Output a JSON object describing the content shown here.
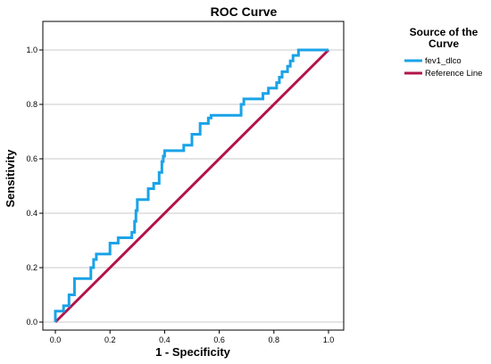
{
  "chart_data": {
    "type": "line",
    "title": "ROC Curve",
    "xlabel": "1 - Specificity",
    "ylabel": "Sensitivity",
    "xlim": [
      0,
      1
    ],
    "ylim": [
      0,
      1
    ],
    "x_ticks": [
      "0.0",
      "0.2",
      "0.4",
      "0.6",
      "0.8",
      "1.0"
    ],
    "y_ticks": [
      "0.0",
      "0.2",
      "0.4",
      "0.6",
      "0.8",
      "1.0"
    ],
    "grid": "horizontal",
    "legend": {
      "title_lines": [
        "Source of the",
        "Curve"
      ],
      "placement": "top-right"
    },
    "series": [
      {
        "name": "fev1_dlco",
        "color": "#1aa3e8",
        "points": [
          [
            0.0,
            0.0
          ],
          [
            0.0,
            0.04
          ],
          [
            0.03,
            0.04
          ],
          [
            0.03,
            0.06
          ],
          [
            0.05,
            0.06
          ],
          [
            0.05,
            0.1
          ],
          [
            0.07,
            0.1
          ],
          [
            0.07,
            0.16
          ],
          [
            0.13,
            0.16
          ],
          [
            0.13,
            0.2
          ],
          [
            0.14,
            0.2
          ],
          [
            0.14,
            0.23
          ],
          [
            0.15,
            0.23
          ],
          [
            0.15,
            0.25
          ],
          [
            0.2,
            0.25
          ],
          [
            0.2,
            0.29
          ],
          [
            0.23,
            0.29
          ],
          [
            0.23,
            0.31
          ],
          [
            0.28,
            0.31
          ],
          [
            0.28,
            0.33
          ],
          [
            0.29,
            0.33
          ],
          [
            0.29,
            0.37
          ],
          [
            0.295,
            0.37
          ],
          [
            0.295,
            0.41
          ],
          [
            0.3,
            0.41
          ],
          [
            0.3,
            0.45
          ],
          [
            0.34,
            0.45
          ],
          [
            0.34,
            0.49
          ],
          [
            0.36,
            0.49
          ],
          [
            0.36,
            0.51
          ],
          [
            0.38,
            0.51
          ],
          [
            0.38,
            0.55
          ],
          [
            0.39,
            0.55
          ],
          [
            0.39,
            0.59
          ],
          [
            0.395,
            0.59
          ],
          [
            0.395,
            0.61
          ],
          [
            0.4,
            0.61
          ],
          [
            0.4,
            0.63
          ],
          [
            0.47,
            0.63
          ],
          [
            0.47,
            0.65
          ],
          [
            0.5,
            0.65
          ],
          [
            0.5,
            0.69
          ],
          [
            0.53,
            0.69
          ],
          [
            0.53,
            0.73
          ],
          [
            0.56,
            0.73
          ],
          [
            0.56,
            0.75
          ],
          [
            0.57,
            0.75
          ],
          [
            0.57,
            0.76
          ],
          [
            0.68,
            0.76
          ],
          [
            0.68,
            0.8
          ],
          [
            0.69,
            0.8
          ],
          [
            0.69,
            0.82
          ],
          [
            0.76,
            0.82
          ],
          [
            0.76,
            0.84
          ],
          [
            0.78,
            0.84
          ],
          [
            0.78,
            0.86
          ],
          [
            0.81,
            0.86
          ],
          [
            0.81,
            0.88
          ],
          [
            0.82,
            0.88
          ],
          [
            0.82,
            0.9
          ],
          [
            0.83,
            0.9
          ],
          [
            0.83,
            0.92
          ],
          [
            0.85,
            0.92
          ],
          [
            0.85,
            0.94
          ],
          [
            0.86,
            0.94
          ],
          [
            0.86,
            0.96
          ],
          [
            0.87,
            0.96
          ],
          [
            0.87,
            0.98
          ],
          [
            0.89,
            0.98
          ],
          [
            0.89,
            1.0
          ],
          [
            1.0,
            1.0
          ]
        ]
      },
      {
        "name": "Reference Line",
        "color": "#b3134a",
        "points": [
          [
            0,
            0
          ],
          [
            1,
            1
          ]
        ]
      }
    ]
  }
}
